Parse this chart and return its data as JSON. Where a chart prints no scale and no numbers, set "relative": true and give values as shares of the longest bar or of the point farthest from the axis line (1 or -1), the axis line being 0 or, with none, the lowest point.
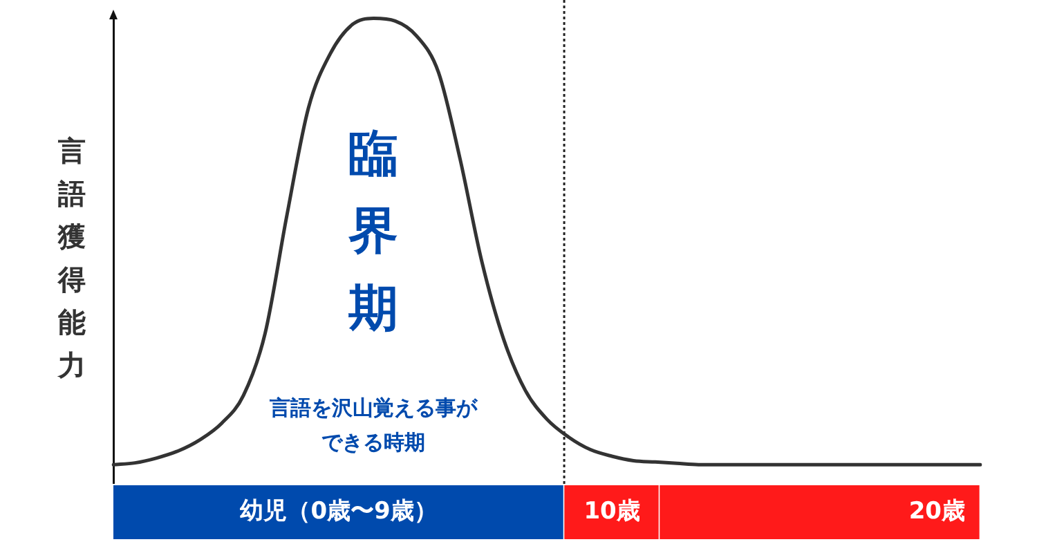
{
  "chart_data": [
    {
      "type": "line",
      "ylabel": "言語獲得能力",
      "relative": true,
      "categories": [
        null,
        null,
        null,
        null,
        null,
        null,
        null,
        null,
        null,
        null,
        null,
        null,
        null,
        null,
        null,
        null,
        null,
        null,
        null,
        null,
        null,
        null,
        null,
        null,
        null,
        null,
        null,
        null,
        null,
        null,
        null,
        null,
        null,
        null,
        null,
        null,
        null,
        null,
        null,
        null,
        null
      ],
      "values": [
        0,
        0.004,
        0.015,
        0.031,
        0.056,
        0.093,
        0.155,
        0.294,
        0.557,
        0.799,
        0.92,
        0.985,
        1,
        0.994,
        0.96,
        0.879,
        0.684,
        0.455,
        0.282,
        0.167,
        0.102,
        0.062,
        0.034,
        0.019,
        0.009,
        0.006,
        0.003,
        0,
        0,
        0,
        0,
        0,
        0,
        0,
        0,
        0,
        0,
        0,
        0,
        0,
        0
      ],
      "color": "#333333",
      "ref_lines": [
        {
          "axis": "x",
          "color": "#222222",
          "line_style": "dotted"
        }
      ],
      "annotations": [
        "臨界期",
        "言語を沢山覚える事ができる時期"
      ]
    },
    {
      "type": "bar",
      "orientation": "horizontal",
      "stacked": true,
      "relative": true,
      "categories": [
        null
      ],
      "series": [
        {
          "name": "幼児（0歳〜9歳）",
          "color": "#004aad",
          "values": [
            0.52
          ]
        },
        {
          "name": "10歳",
          "color": "#ff1a1a",
          "values": [
            0.11
          ]
        },
        {
          "name": "20歳",
          "color": "#ff1a1a",
          "values": [
            0.37
          ]
        }
      ]
    }
  ]
}
